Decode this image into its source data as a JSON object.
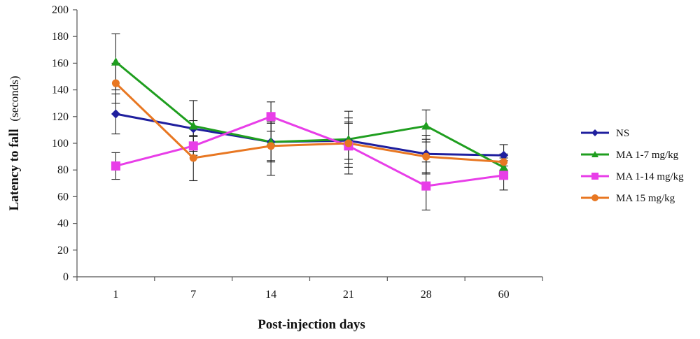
{
  "chart_data": {
    "type": "line",
    "title": "",
    "xlabel": "Post-injection days",
    "ylabel": "Latency to fall",
    "ylabel_unit": "(seconds)",
    "categories": [
      "1",
      "7",
      "14",
      "21",
      "28",
      "60"
    ],
    "ylim": [
      0,
      200
    ],
    "yticks": [
      0,
      20,
      40,
      60,
      80,
      100,
      120,
      140,
      160,
      180,
      200
    ],
    "grid": false,
    "legend_position": "right",
    "error_bars": true,
    "series": [
      {
        "name": "NS",
        "color": "#1f1f9e",
        "marker": "diamond",
        "values": [
          122,
          111,
          101,
          102,
          92,
          91
        ],
        "errors": [
          15,
          6,
          14,
          14,
          14,
          8
        ]
      },
      {
        "name": "MA 1-7 mg/kg",
        "color": "#1f9e1f",
        "marker": "triangle",
        "values": [
          161,
          113,
          101,
          103,
          113,
          82
        ],
        "errors": [
          21,
          19,
          15,
          21,
          12,
          7
        ]
      },
      {
        "name": "MA 1-14 mg/kg",
        "color": "#e83ee8",
        "marker": "square",
        "values": [
          83,
          98,
          120,
          98,
          68,
          76
        ],
        "errors": [
          10,
          7,
          11,
          21,
          18,
          11
        ]
      },
      {
        "name": "MA 15 mg/kg",
        "color": "#e87722",
        "marker": "circle",
        "values": [
          145,
          89,
          98,
          100,
          90,
          86
        ],
        "errors": [
          15,
          17,
          22,
          15,
          13,
          6
        ]
      }
    ]
  }
}
